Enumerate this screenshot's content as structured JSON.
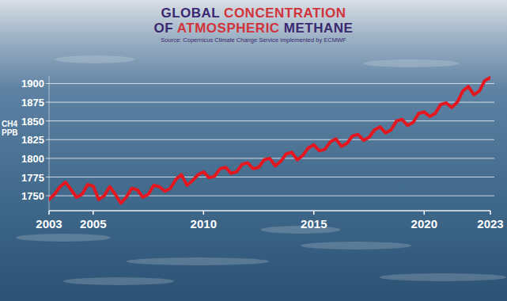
{
  "chart_data": {
    "type": "line",
    "title": "GLOBAL CONCENTRATION OF ATMOSPHERIC METHANE",
    "subtitle": "Source: Copernicus Climate Change Service implemented by ECMWF",
    "ylabel": "CH4 PPB",
    "color": "#e3171f",
    "grid": true,
    "xlim": [
      2003,
      2023
    ],
    "ylim": [
      1730,
      1910
    ],
    "xticks": [
      2003,
      2005,
      2010,
      2015,
      2020,
      2023
    ],
    "yticks": [
      1750,
      1775,
      1800,
      1825,
      1850,
      1875,
      1900
    ],
    "x": [
      2003,
      2003.25,
      2003.5,
      2003.75,
      2004,
      2004.25,
      2004.5,
      2004.75,
      2005,
      2005.25,
      2005.5,
      2005.75,
      2006,
      2006.25,
      2006.5,
      2006.75,
      2007,
      2007.25,
      2007.5,
      2007.75,
      2008,
      2008.25,
      2008.5,
      2008.75,
      2009,
      2009.25,
      2009.5,
      2009.75,
      2010,
      2010.25,
      2010.5,
      2010.75,
      2011,
      2011.25,
      2011.5,
      2011.75,
      2012,
      2012.25,
      2012.5,
      2012.75,
      2013,
      2013.25,
      2013.5,
      2013.75,
      2014,
      2014.25,
      2014.5,
      2014.75,
      2015,
      2015.25,
      2015.5,
      2015.75,
      2016,
      2016.25,
      2016.5,
      2016.75,
      2017,
      2017.25,
      2017.5,
      2017.75,
      2018,
      2018.25,
      2018.5,
      2018.75,
      2019,
      2019.25,
      2019.5,
      2019.75,
      2020,
      2020.25,
      2020.5,
      2020.75,
      2021,
      2021.25,
      2021.5,
      2021.75,
      2022,
      2022.25,
      2022.5,
      2022.75,
      2023
    ],
    "values": [
      1745,
      1752,
      1762,
      1768,
      1758,
      1748,
      1752,
      1765,
      1763,
      1745,
      1750,
      1762,
      1752,
      1740,
      1748,
      1760,
      1758,
      1748,
      1752,
      1764,
      1762,
      1756,
      1760,
      1772,
      1778,
      1764,
      1770,
      1778,
      1782,
      1774,
      1776,
      1786,
      1788,
      1780,
      1782,
      1792,
      1794,
      1786,
      1788,
      1798,
      1800,
      1790,
      1796,
      1806,
      1808,
      1798,
      1804,
      1814,
      1818,
      1810,
      1812,
      1822,
      1826,
      1816,
      1820,
      1830,
      1832,
      1824,
      1828,
      1838,
      1842,
      1834,
      1838,
      1850,
      1852,
      1844,
      1848,
      1860,
      1862,
      1856,
      1860,
      1872,
      1874,
      1868,
      1875,
      1890,
      1896,
      1885,
      1890,
      1904,
      1908
    ]
  }
}
